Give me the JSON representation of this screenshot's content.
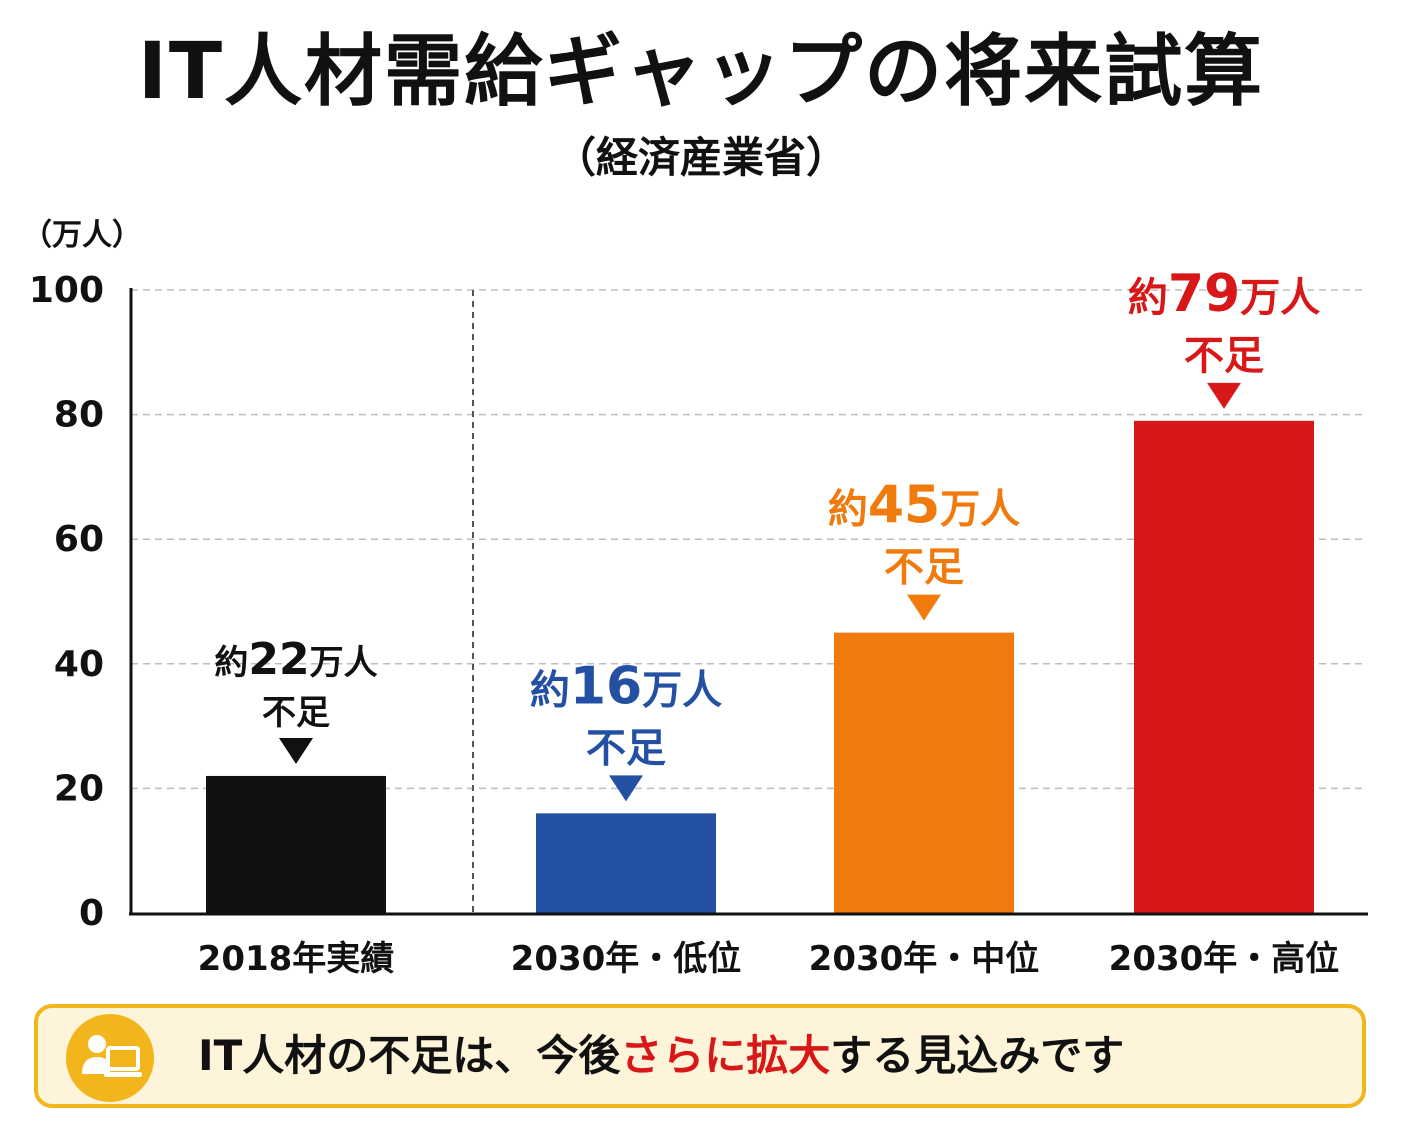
{
  "title": "IT人材需給ギャップの将来試算",
  "subtitle": "（経済産業省）",
  "colors": {
    "black": "#111111",
    "blue": "#2450a4",
    "orange": "#f07a0c",
    "red": "#d81718",
    "banner_border": "#f2b51c",
    "banner_bg": "#fdf4d9"
  },
  "chart_data": {
    "type": "bar",
    "unit_label": "（万人）",
    "ylim": [
      0,
      100
    ],
    "yticks": [
      "0",
      "20",
      "40",
      "60",
      "80",
      "100"
    ],
    "grid": true,
    "categories": [
      "2018年実績",
      "2030年・低位",
      "2030年・中位",
      "2030年・高位"
    ],
    "values": [
      22,
      16,
      45,
      79
    ],
    "bar_colors": [
      "#111111",
      "#2450a4",
      "#f07a0c",
      "#d81718"
    ],
    "annotations": [
      {
        "prefix": "約",
        "number": "22",
        "suffix": "万人",
        "line2": "不足"
      },
      {
        "prefix": "約",
        "number": "16",
        "suffix": "万人",
        "line2": "不足"
      },
      {
        "prefix": "約",
        "number": "45",
        "suffix": "万人",
        "line2": "不足"
      },
      {
        "prefix": "約",
        "number": "79",
        "suffix": "万人",
        "line2": "不足"
      }
    ]
  },
  "banner": {
    "icon": "person-computer-icon",
    "text_before": "IT人材の不足は、今後",
    "text_accent": "さらに拡大",
    "text_after": "する見込みです"
  }
}
